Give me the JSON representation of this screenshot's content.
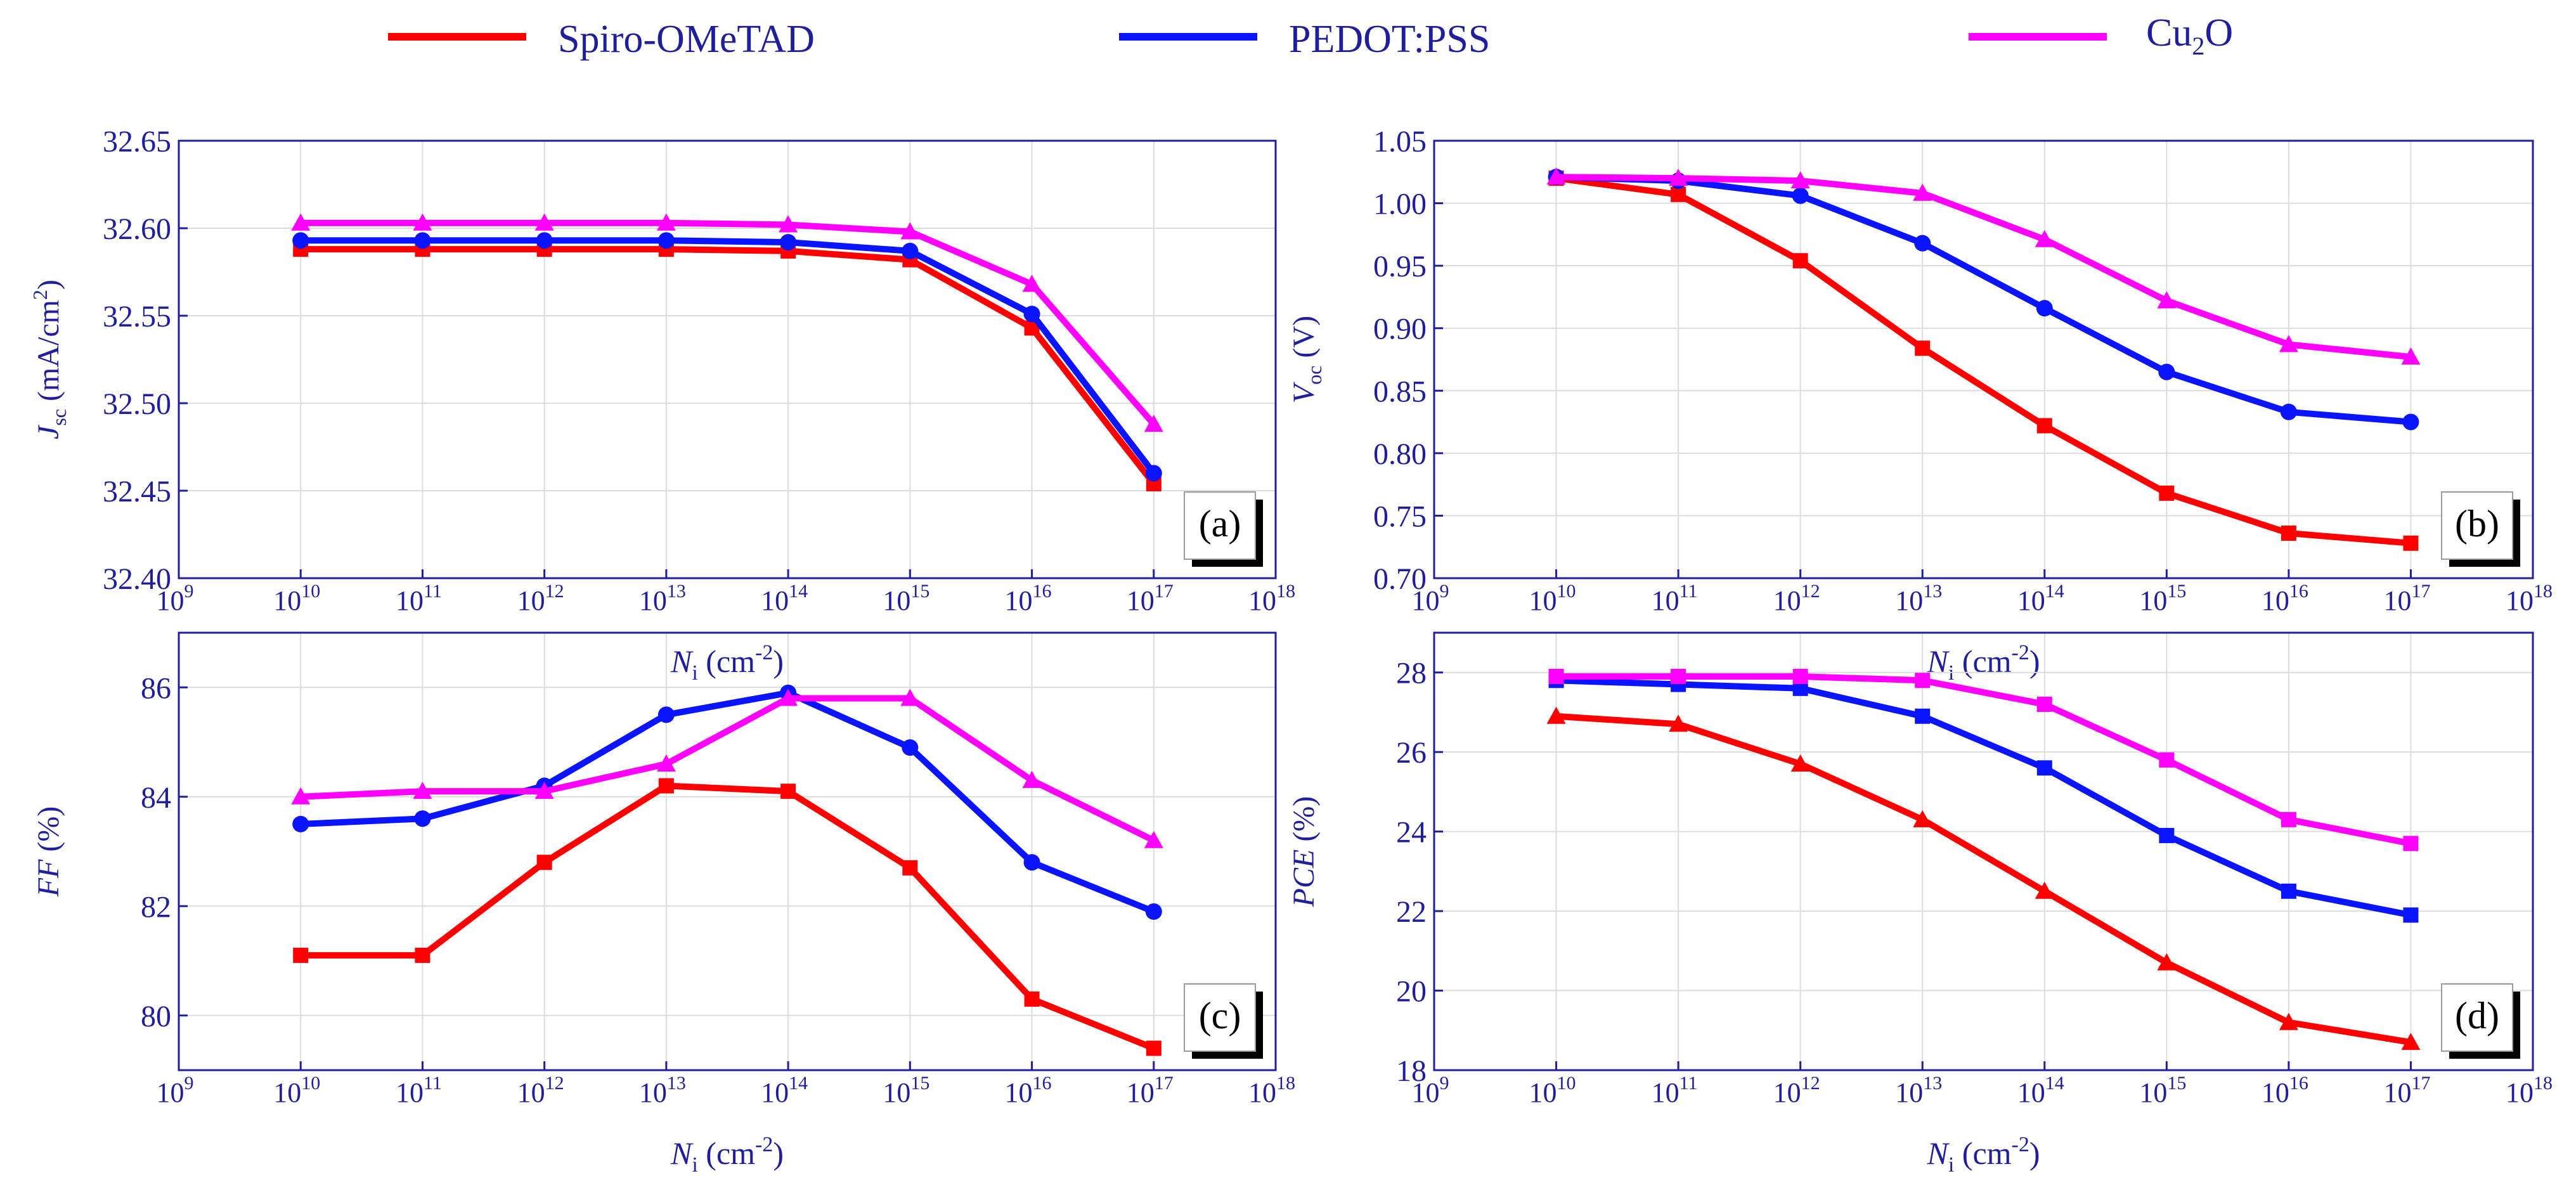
{
  "colors": {
    "axis": "#1f1f9e",
    "grid": "#dcdcdc",
    "spiro": "#ff0000",
    "pedot": "#0a14ff",
    "cu2o": "#ff00ff"
  },
  "legend": [
    {
      "key": "spiro",
      "label": "Spiro-OMeTAD"
    },
    {
      "key": "pedot",
      "label": "PEDOT:PSS"
    },
    {
      "key": "cu2o",
      "label": "Cu",
      "sub": "2",
      "tail": "O"
    }
  ],
  "x_exponents": [
    "9",
    "10",
    "11",
    "12",
    "13",
    "14",
    "15",
    "16",
    "17",
    "18"
  ],
  "x_label": {
    "sym": "N",
    "sub": "i",
    "unit": " (cm",
    "sup": "-2",
    "close": ")"
  },
  "chart_data": [
    {
      "id": "a",
      "type": "line",
      "panel_label": "(a)",
      "ylabel": {
        "sym": "J",
        "sub": "sc",
        "unit": " (mA/cm",
        "sup": "2",
        "close": ")"
      },
      "ylim": [
        32.4,
        32.65
      ],
      "yticks": [
        "32.40",
        "32.45",
        "32.50",
        "32.55",
        "32.60",
        "32.65"
      ],
      "x": [
        10,
        11,
        12,
        13,
        14,
        15,
        16,
        17
      ],
      "series": [
        {
          "name": "Spiro-OMeTAD",
          "key": "spiro",
          "marker": "square",
          "values": [
            32.588,
            32.588,
            32.588,
            32.588,
            32.587,
            32.582,
            32.543,
            32.454
          ]
        },
        {
          "name": "PEDOT:PSS",
          "key": "pedot",
          "marker": "circle",
          "values": [
            32.593,
            32.593,
            32.593,
            32.593,
            32.592,
            32.587,
            32.551,
            32.46
          ]
        },
        {
          "name": "Cu2O",
          "key": "cu2o",
          "marker": "triangle",
          "values": [
            32.603,
            32.603,
            32.603,
            32.603,
            32.602,
            32.598,
            32.568,
            32.488
          ]
        }
      ]
    },
    {
      "id": "b",
      "type": "line",
      "panel_label": "(b)",
      "ylabel": {
        "sym": "V",
        "sub": "oc",
        "unit": " (V)",
        "sup": "",
        "close": ""
      },
      "ylim": [
        0.7,
        1.05
      ],
      "yticks": [
        "0.70",
        "0.75",
        "0.80",
        "0.85",
        "0.90",
        "0.95",
        "1.00",
        "1.05"
      ],
      "x": [
        10,
        11,
        12,
        13,
        14,
        15,
        16,
        17
      ],
      "series": [
        {
          "name": "Spiro-OMeTAD",
          "key": "spiro",
          "marker": "square",
          "values": [
            1.02,
            1.007,
            0.954,
            0.884,
            0.822,
            0.768,
            0.736,
            0.728
          ]
        },
        {
          "name": "PEDOT:PSS",
          "key": "pedot",
          "marker": "circle",
          "values": [
            1.021,
            1.018,
            1.006,
            0.968,
            0.916,
            0.865,
            0.833,
            0.825
          ]
        },
        {
          "name": "Cu2O",
          "key": "cu2o",
          "marker": "triangle",
          "values": [
            1.021,
            1.02,
            1.018,
            1.008,
            0.971,
            0.922,
            0.887,
            0.877
          ]
        }
      ]
    },
    {
      "id": "c",
      "type": "line",
      "panel_label": "(c)",
      "ylabel": {
        "sym": "FF",
        "sub": "",
        "unit": " (%)",
        "sup": "",
        "close": ""
      },
      "ylim": [
        79.0,
        87.0
      ],
      "yticks": [
        "80",
        "82",
        "84",
        "86"
      ],
      "ytick_values": [
        80,
        82,
        84,
        86
      ],
      "x": [
        10,
        11,
        12,
        13,
        14,
        15,
        16,
        17
      ],
      "series": [
        {
          "name": "Spiro-OMeTAD",
          "key": "spiro",
          "marker": "square",
          "values": [
            81.1,
            81.1,
            82.8,
            84.2,
            84.1,
            82.7,
            80.3,
            79.4
          ]
        },
        {
          "name": "PEDOT:PSS",
          "key": "pedot",
          "marker": "circle",
          "values": [
            83.5,
            83.6,
            84.2,
            85.5,
            85.9,
            84.9,
            82.8,
            81.9
          ]
        },
        {
          "name": "Cu2O",
          "key": "cu2o",
          "marker": "triangle",
          "values": [
            84.0,
            84.1,
            84.1,
            84.6,
            85.8,
            85.8,
            84.3,
            83.2
          ]
        }
      ]
    },
    {
      "id": "d",
      "type": "line",
      "panel_label": "(d)",
      "ylabel": {
        "sym": "PCE",
        "sub": "",
        "unit": " (%)",
        "sup": "",
        "close": ""
      },
      "ylim": [
        18.0,
        29.0
      ],
      "yticks": [
        "18",
        "20",
        "22",
        "24",
        "26",
        "28"
      ],
      "ytick_values": [
        18,
        20,
        22,
        24,
        26,
        28
      ],
      "x": [
        10,
        11,
        12,
        13,
        14,
        15,
        16,
        17
      ],
      "series": [
        {
          "name": "Spiro-OMeTAD",
          "key": "spiro",
          "marker": "triangle",
          "values": [
            26.9,
            26.7,
            25.7,
            24.3,
            22.5,
            20.7,
            19.2,
            18.7
          ]
        },
        {
          "name": "PEDOT:PSS",
          "key": "pedot",
          "marker": "square",
          "values": [
            27.8,
            27.7,
            27.6,
            26.9,
            25.6,
            23.9,
            22.5,
            21.9
          ]
        },
        {
          "name": "Cu2O",
          "key": "cu2o",
          "marker": "square",
          "values": [
            27.9,
            27.9,
            27.9,
            27.8,
            27.2,
            25.8,
            24.3,
            23.7
          ]
        }
      ]
    }
  ]
}
